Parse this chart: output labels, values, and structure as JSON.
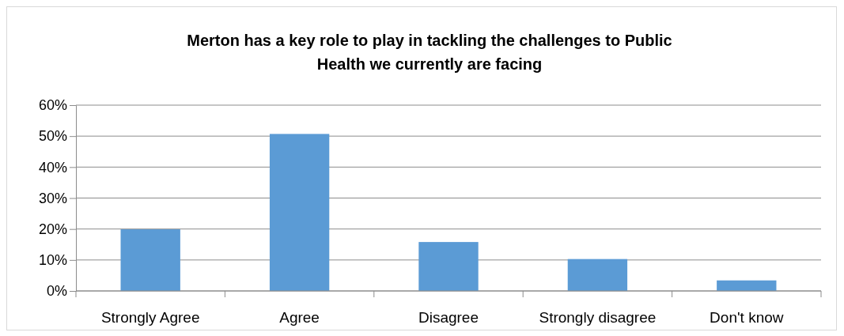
{
  "chart_data": {
    "type": "bar",
    "title": "Merton has a key role to play in tackling the challenges to Public Health we currently are facing",
    "categories": [
      "Strongly Agree",
      "Agree",
      "Disagree",
      "Strongly disagree",
      "Don't know"
    ],
    "values": [
      19.9,
      50.7,
      15.8,
      10.3,
      3.4
    ],
    "color": "#5b9bd5",
    "ylim": [
      0,
      60
    ],
    "yticks": [
      {
        "value": 0,
        "label": "0%"
      },
      {
        "value": 10,
        "label": "10%"
      },
      {
        "value": 20,
        "label": "20%"
      },
      {
        "value": 30,
        "label": "30%"
      },
      {
        "value": 40,
        "label": "40%"
      },
      {
        "value": 50,
        "label": "50%"
      },
      {
        "value": 60,
        "label": "60%"
      }
    ],
    "grid": "y"
  }
}
